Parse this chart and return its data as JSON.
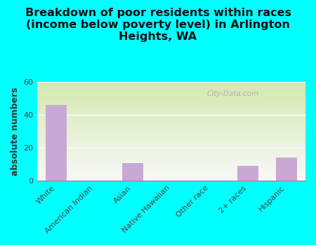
{
  "categories": [
    "White",
    "American Indian",
    "Asian",
    "Native Hawaiian",
    "Other race",
    "2+ races",
    "Hispanic"
  ],
  "values": [
    46,
    0,
    11,
    0,
    0,
    9,
    14
  ],
  "bar_color": "#c9a8d4",
  "background_color": "#00ffff",
  "plot_bg_gradient_top": "#d4e8b0",
  "plot_bg_gradient_bottom": "#f8f8f8",
  "title": "Breakdown of poor residents within races\n(income below poverty level) in Arlington\nHeights, WA",
  "ylabel": "absolute numbers",
  "ylim": [
    0,
    60
  ],
  "yticks": [
    0,
    20,
    40,
    60
  ],
  "title_fontsize": 11.5,
  "axis_label_fontsize": 9,
  "tick_fontsize": 8,
  "watermark": "City-Data.com"
}
